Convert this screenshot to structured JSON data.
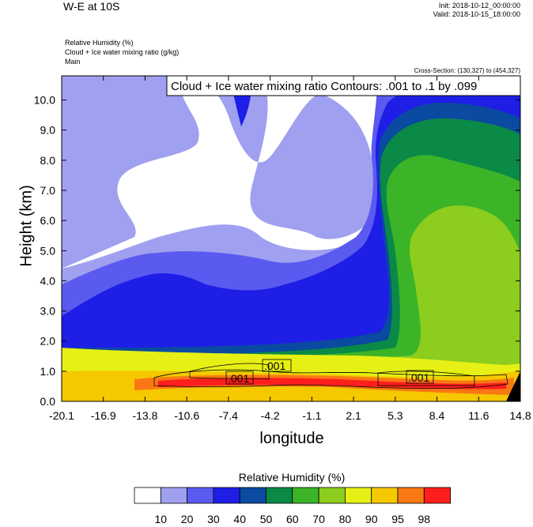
{
  "header": {
    "title": "W-E at 10S",
    "init": "Init: 2018-10-12_00:00:00",
    "valid": "Valid: 2018-10-15_18:00:00",
    "field1": "Relative Humidity   (%)",
    "field2": "Cloud + Ice water mixing ratio   (g/kg)",
    "field3": "Main",
    "cross_section": "Cross-Section: (130,327) to (454,327)"
  },
  "chart_data": {
    "type": "heatmap",
    "title": "W-E at 10S",
    "xlabel": "longitude",
    "ylabel": "Height (km)",
    "xlim": [
      -20.1,
      14.8
    ],
    "ylim": [
      0.0,
      10.8
    ],
    "x_ticks": [
      "-20.1",
      "-16.9",
      "-13.8",
      "-10.6",
      "-7.4",
      "-4.2",
      "-1.1",
      "2.1",
      "5.3",
      "8.4",
      "11.6",
      "14.8"
    ],
    "y_ticks": [
      "0.0",
      "1.0",
      "2.0",
      "3.0",
      "4.0",
      "5.0",
      "6.0",
      "7.0",
      "8.0",
      "9.0",
      "10.0"
    ],
    "contour_legend": "Cloud + Ice water mixing ratio Contours: .001 to .1 by .099",
    "contour_labels": [
      ".001",
      ".001",
      ".001"
    ],
    "colorbar": {
      "title": "Relative Humidity  (%)",
      "levels": [
        "10",
        "20",
        "30",
        "40",
        "50",
        "60",
        "70",
        "80",
        "90",
        "95",
        "98"
      ],
      "colors": [
        "#ffffff",
        "#a0a0f0",
        "#5a5af0",
        "#1e1ee6",
        "#0a4aa0",
        "#0a8a46",
        "#3cb428",
        "#8ccd1e",
        "#e6f014",
        "#f5c800",
        "#fa7814",
        "#ff1e1e"
      ]
    }
  }
}
